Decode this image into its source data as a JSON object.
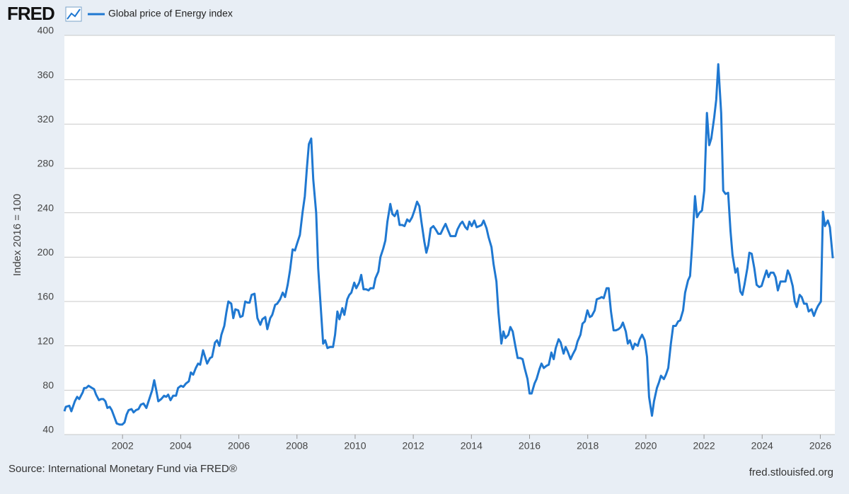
{
  "logo": "FRED",
  "source": "Source: International Monetary Fund via FRED®",
  "site": "fred.stlouisfed.org",
  "chart_data": {
    "type": "line",
    "y_label": "Index 2016 = 100",
    "grid": true,
    "xlim": [
      2000,
      2026.5
    ],
    "ylim": [
      40,
      400
    ],
    "xticks": [
      2002,
      2004,
      2006,
      2008,
      2010,
      2012,
      2014,
      2016,
      2018,
      2020,
      2022,
      2024,
      2026
    ],
    "yticks": [
      40,
      80,
      120,
      160,
      200,
      240,
      280,
      320,
      360,
      400
    ],
    "x": [
      2000.0,
      2000.05,
      2000.17,
      2000.24,
      2000.36,
      2000.44,
      2000.51,
      2000.63,
      2000.68,
      2000.75,
      2000.83,
      2000.95,
      2001.02,
      2001.09,
      2001.19,
      2001.26,
      2001.34,
      2001.41,
      2001.48,
      2001.56,
      2001.63,
      2001.73,
      2001.8,
      2001.9,
      2001.99,
      2002.07,
      2002.14,
      2002.21,
      2002.31,
      2002.38,
      2002.46,
      2002.55,
      2002.63,
      2002.72,
      2002.82,
      2002.92,
      2003.02,
      2003.09,
      2003.16,
      2003.23,
      2003.33,
      2003.43,
      2003.5,
      2003.57,
      2003.65,
      2003.74,
      2003.84,
      2003.91,
      2004.01,
      2004.09,
      2004.18,
      2004.28,
      2004.35,
      2004.43,
      2004.52,
      2004.6,
      2004.67,
      2004.77,
      2004.84,
      2004.91,
      2005.01,
      2005.08,
      2005.18,
      2005.25,
      2005.33,
      2005.4,
      2005.5,
      2005.57,
      2005.64,
      2005.74,
      2005.81,
      2005.88,
      2005.98,
      2006.05,
      2006.13,
      2006.22,
      2006.3,
      2006.37,
      2006.44,
      2006.54,
      2006.64,
      2006.74,
      2006.81,
      2006.91,
      2006.98,
      2007.08,
      2007.15,
      2007.25,
      2007.32,
      2007.42,
      2007.51,
      2007.59,
      2007.68,
      2007.76,
      2007.85,
      2007.93,
      2008.0,
      2008.1,
      2008.19,
      2008.27,
      2008.34,
      2008.41,
      2008.49,
      2008.56,
      2008.66,
      2008.73,
      2008.83,
      2008.9,
      2008.97,
      2009.05,
      2009.14,
      2009.24,
      2009.31,
      2009.39,
      2009.46,
      2009.56,
      2009.63,
      2009.73,
      2009.8,
      2009.87,
      2009.97,
      2010.04,
      2010.14,
      2010.21,
      2010.29,
      2010.38,
      2010.46,
      2010.53,
      2010.63,
      2010.7,
      2010.8,
      2010.87,
      2010.97,
      2011.04,
      2011.11,
      2011.21,
      2011.28,
      2011.36,
      2011.45,
      2011.53,
      2011.62,
      2011.7,
      2011.79,
      2011.87,
      2011.96,
      2012.04,
      2012.13,
      2012.21,
      2012.28,
      2012.38,
      2012.45,
      2012.52,
      2012.6,
      2012.69,
      2012.77,
      2012.86,
      2012.94,
      2013.03,
      2013.11,
      2013.2,
      2013.28,
      2013.35,
      2013.45,
      2013.52,
      2013.62,
      2013.69,
      2013.79,
      2013.86,
      2013.93,
      2014.01,
      2014.1,
      2014.18,
      2014.27,
      2014.35,
      2014.42,
      2014.52,
      2014.59,
      2014.69,
      2014.76,
      2014.86,
      2014.93,
      2015.03,
      2015.1,
      2015.17,
      2015.27,
      2015.34,
      2015.42,
      2015.51,
      2015.59,
      2015.68,
      2015.76,
      2015.83,
      2015.93,
      2016.0,
      2016.07,
      2016.17,
      2016.24,
      2016.34,
      2016.41,
      2016.49,
      2016.58,
      2016.66,
      2016.75,
      2016.83,
      2016.9,
      2017.0,
      2017.07,
      2017.17,
      2017.24,
      2017.31,
      2017.41,
      2017.48,
      2017.58,
      2017.65,
      2017.75,
      2017.82,
      2017.9,
      2017.99,
      2018.07,
      2018.14,
      2018.24,
      2018.31,
      2018.41,
      2018.48,
      2018.55,
      2018.65,
      2018.72,
      2018.8,
      2018.89,
      2018.97,
      2019.06,
      2019.14,
      2019.21,
      2019.31,
      2019.38,
      2019.45,
      2019.55,
      2019.62,
      2019.72,
      2019.79,
      2019.87,
      2019.96,
      2020.04,
      2020.11,
      2020.21,
      2020.28,
      2020.38,
      2020.45,
      2020.52,
      2020.62,
      2020.69,
      2020.77,
      2020.86,
      2020.94,
      2021.03,
      2021.11,
      2021.18,
      2021.28,
      2021.35,
      2021.45,
      2021.52,
      2021.59,
      2021.69,
      2021.76,
      2021.84,
      2021.93,
      2022.01,
      2022.1,
      2022.18,
      2022.25,
      2022.35,
      2022.42,
      2022.49,
      2022.59,
      2022.66,
      2022.74,
      2022.83,
      2022.91,
      2022.98,
      2023.08,
      2023.15,
      2023.25,
      2023.32,
      2023.39,
      2023.49,
      2023.56,
      2023.64,
      2023.73,
      2023.81,
      2023.9,
      2023.98,
      2024.05,
      2024.15,
      2024.22,
      2024.29,
      2024.39,
      2024.46,
      2024.54,
      2024.63,
      2024.71,
      2024.8,
      2024.88,
      2024.95,
      2025.05,
      2025.12,
      2025.19,
      2025.29,
      2025.36,
      2025.44,
      2025.53,
      2025.6,
      2025.7,
      2025.78,
      2025.85,
      2025.92,
      2026.02,
      2026.09,
      2026.16,
      2026.26,
      2026.33,
      2026.43
    ],
    "series": [
      {
        "name": "Global price of Energy index",
        "color": "#1f78d1",
        "values": [
          61,
          65,
          66,
          61,
          70,
          74,
          72,
          78,
          82,
          82,
          84,
          82,
          81,
          76,
          71,
          72,
          72,
          70,
          64,
          65,
          62,
          55,
          50,
          49,
          49,
          51,
          58,
          62,
          63,
          60,
          62,
          63,
          67,
          68,
          64,
          72,
          80,
          89,
          80,
          70,
          72,
          75,
          74,
          76,
          71,
          75,
          75,
          82,
          84,
          83,
          86,
          88,
          96,
          94,
          100,
          104,
          103,
          116,
          110,
          104,
          109,
          110,
          123,
          125,
          120,
          130,
          138,
          150,
          160,
          158,
          145,
          153,
          152,
          146,
          147,
          160,
          159,
          159,
          166,
          167,
          145,
          139,
          144,
          146,
          135,
          145,
          148,
          157,
          158,
          162,
          168,
          164,
          175,
          188,
          207,
          206,
          212,
          220,
          240,
          255,
          280,
          302,
          307,
          270,
          240,
          190,
          150,
          122,
          125,
          118,
          119,
          119,
          130,
          151,
          144,
          154,
          148,
          162,
          166,
          168,
          177,
          172,
          177,
          184,
          171,
          171,
          170,
          172,
          172,
          181,
          187,
          200,
          208,
          215,
          232,
          248,
          239,
          237,
          242,
          229,
          229,
          228,
          234,
          232,
          236,
          242,
          250,
          246,
          232,
          214,
          204,
          211,
          226,
          228,
          225,
          221,
          221,
          226,
          230,
          224,
          219,
          219,
          219,
          225,
          230,
          232,
          227,
          225,
          232,
          228,
          233,
          227,
          228,
          229,
          233,
          226,
          218,
          209,
          194,
          178,
          150,
          122,
          133,
          127,
          130,
          137,
          133,
          120,
          109,
          109,
          108,
          100,
          90,
          77,
          77,
          86,
          90,
          99,
          104,
          100,
          102,
          103,
          114,
          108,
          118,
          126,
          123,
          113,
          119,
          115,
          108,
          112,
          117,
          124,
          130,
          140,
          142,
          152,
          146,
          147,
          152,
          162,
          163,
          164,
          163,
          172,
          172,
          151,
          134,
          134,
          135,
          137,
          141,
          133,
          122,
          125,
          117,
          122,
          120,
          126,
          130,
          125,
          110,
          74,
          57,
          70,
          82,
          87,
          93,
          90,
          94,
          100,
          122,
          138,
          138,
          142,
          143,
          152,
          168,
          179,
          183,
          210,
          255,
          236,
          240,
          242,
          260,
          330,
          301,
          307,
          326,
          342,
          374,
          330,
          260,
          257,
          258,
          224,
          202,
          186,
          190,
          169,
          166,
          175,
          190,
          204,
          203,
          190,
          175,
          173,
          174,
          180,
          188,
          182,
          186,
          186,
          182,
          170,
          178,
          178,
          178,
          188,
          184,
          174,
          160,
          155,
          166,
          164,
          158,
          158,
          151,
          153,
          147,
          152,
          156,
          160,
          241,
          228,
          233,
          227,
          199
        ]
      }
    ]
  }
}
